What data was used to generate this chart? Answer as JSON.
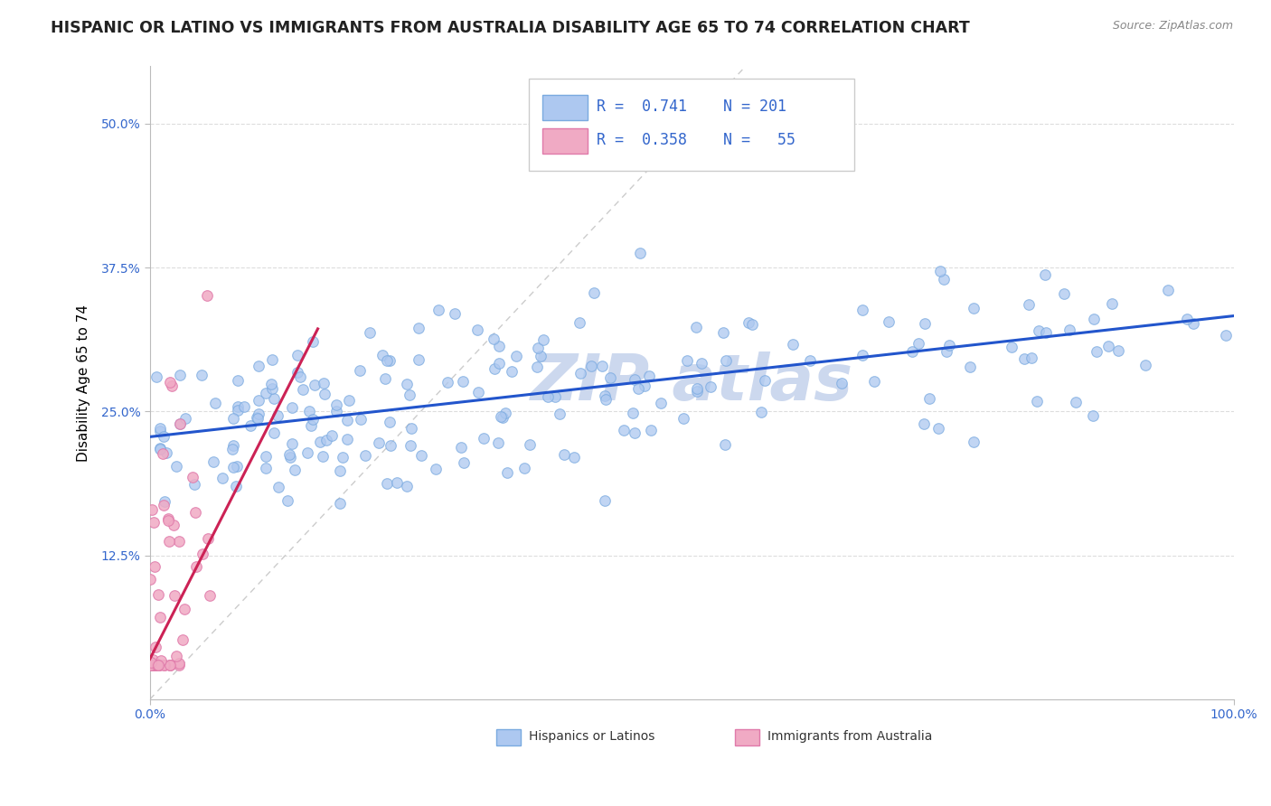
{
  "title": "HISPANIC OR LATINO VS IMMIGRANTS FROM AUSTRALIA DISABILITY AGE 65 TO 74 CORRELATION CHART",
  "source": "Source: ZipAtlas.com",
  "ylabel": "Disability Age 65 to 74",
  "xmin": 0.0,
  "xmax": 1.0,
  "ymin": 0.0,
  "ymax": 0.55,
  "blue_R": 0.741,
  "blue_N": 201,
  "pink_R": 0.358,
  "pink_N": 55,
  "blue_color": "#adc8f0",
  "pink_color": "#f0aac4",
  "blue_edge_color": "#7aaae0",
  "pink_edge_color": "#e07aaa",
  "blue_line_color": "#2255cc",
  "pink_line_color": "#cc2255",
  "ref_line_color": "#cccccc",
  "grid_color": "#dddddd",
  "tick_color": "#3366cc",
  "title_color": "#222222",
  "source_color": "#888888",
  "watermark_color": "#ccd8ee",
  "title_fontsize": 12.5,
  "axis_label_fontsize": 11,
  "tick_fontsize": 10,
  "legend_fontsize": 12,
  "marker_size": 70,
  "blue_line_intercept": 0.228,
  "blue_line_slope": 0.105,
  "pink_line_intercept": 0.035,
  "pink_line_slope": 1.85,
  "pink_line_xmax": 0.155,
  "ref_line_x1": 0.0,
  "ref_line_y1": 0.0,
  "ref_line_x2": 0.55,
  "ref_line_y2": 0.55
}
